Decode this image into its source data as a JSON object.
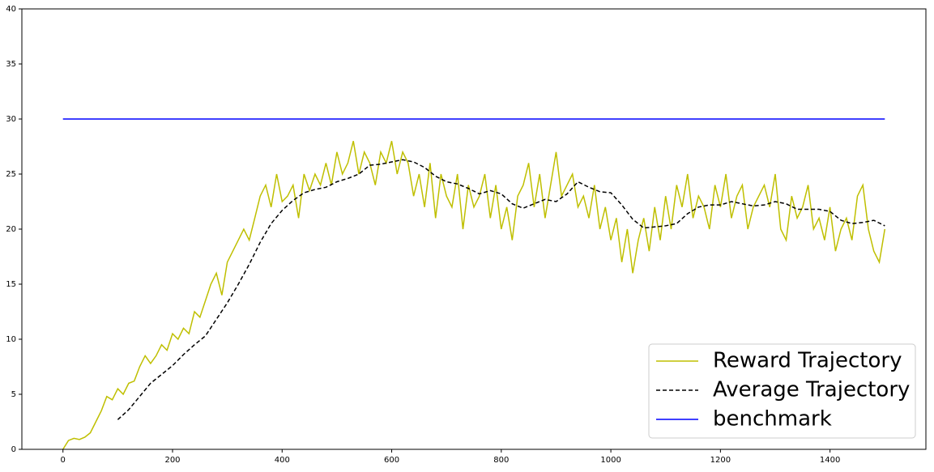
{
  "chart_data": {
    "type": "line",
    "xlim": [
      -75,
      1575
    ],
    "ylim": [
      0,
      40
    ],
    "xticks": [
      0,
      200,
      400,
      600,
      800,
      1000,
      1200,
      1400
    ],
    "yticks": [
      0,
      5,
      10,
      15,
      20,
      25,
      30,
      35,
      40
    ],
    "legend": "lower right",
    "series": [
      {
        "name": "Reward Trajectory",
        "color": "#bfbf00",
        "style": "solid",
        "x": [
          0,
          10,
          20,
          30,
          40,
          50,
          60,
          70,
          80,
          90,
          100,
          110,
          120,
          130,
          140,
          150,
          160,
          170,
          180,
          190,
          200,
          210,
          220,
          230,
          240,
          250,
          260,
          270,
          280,
          290,
          300,
          310,
          320,
          330,
          340,
          350,
          360,
          370,
          380,
          390,
          400,
          410,
          420,
          430,
          440,
          450,
          460,
          470,
          480,
          490,
          500,
          510,
          520,
          530,
          540,
          550,
          560,
          570,
          580,
          590,
          600,
          610,
          620,
          630,
          640,
          650,
          660,
          670,
          680,
          690,
          700,
          710,
          720,
          730,
          740,
          750,
          760,
          770,
          780,
          790,
          800,
          810,
          820,
          830,
          840,
          850,
          860,
          870,
          880,
          890,
          900,
          910,
          920,
          930,
          940,
          950,
          960,
          970,
          980,
          990,
          1000,
          1010,
          1020,
          1030,
          1040,
          1050,
          1060,
          1070,
          1080,
          1090,
          1100,
          1110,
          1120,
          1130,
          1140,
          1150,
          1160,
          1170,
          1180,
          1190,
          1200,
          1210,
          1220,
          1230,
          1240,
          1250,
          1260,
          1270,
          1280,
          1290,
          1300,
          1310,
          1320,
          1330,
          1340,
          1350,
          1360,
          1370,
          1380,
          1390,
          1400,
          1410,
          1420,
          1430,
          1440,
          1450,
          1460,
          1470,
          1480,
          1490,
          1500
        ],
        "values": [
          0,
          0.8,
          1,
          0.9,
          1.1,
          1.5,
          2.5,
          3.5,
          4.8,
          4.5,
          5.5,
          5,
          6,
          6.2,
          7.5,
          8.5,
          7.8,
          8.5,
          9.5,
          9,
          10.5,
          10,
          11,
          10.5,
          12.5,
          12,
          13.5,
          15,
          16,
          14,
          17,
          18,
          19,
          20,
          19,
          21,
          23,
          24,
          22,
          25,
          22.5,
          23,
          24,
          21,
          25,
          23.5,
          25,
          24,
          26,
          24,
          27,
          25,
          26,
          28,
          25,
          27,
          26,
          24,
          27,
          26,
          28,
          25,
          27,
          26,
          23,
          25,
          22,
          26,
          21,
          25,
          23,
          22,
          25,
          20,
          24,
          22,
          23,
          25,
          21,
          24,
          20,
          22,
          19,
          23,
          24,
          26,
          22,
          25,
          21,
          24,
          27,
          23,
          24,
          25,
          22,
          23,
          21,
          24,
          20,
          22,
          19,
          21,
          17,
          20,
          16,
          19,
          21,
          18,
          22,
          19,
          23,
          20,
          24,
          22,
          25,
          21,
          23,
          22,
          20,
          24,
          22,
          25,
          21,
          23,
          24,
          20,
          22,
          23,
          24,
          22,
          25,
          20,
          19,
          23,
          21,
          22,
          24,
          20,
          21,
          19,
          22,
          18,
          20,
          21,
          19,
          23,
          24,
          20,
          18,
          17,
          20
        ]
      },
      {
        "name": "Average Trajectory",
        "color": "#000000",
        "style": "dashed",
        "x": [
          100,
          120,
          140,
          160,
          180,
          200,
          220,
          240,
          260,
          280,
          300,
          320,
          340,
          360,
          380,
          400,
          420,
          440,
          460,
          480,
          500,
          520,
          540,
          560,
          580,
          600,
          620,
          640,
          660,
          680,
          700,
          720,
          740,
          760,
          780,
          800,
          820,
          840,
          860,
          880,
          900,
          920,
          940,
          960,
          980,
          1000,
          1020,
          1040,
          1060,
          1080,
          1100,
          1120,
          1140,
          1160,
          1180,
          1200,
          1220,
          1240,
          1260,
          1280,
          1300,
          1320,
          1340,
          1360,
          1380,
          1400,
          1420,
          1440,
          1460,
          1480,
          1500
        ],
        "values": [
          2.7,
          3.6,
          4.8,
          6,
          6.8,
          7.6,
          8.6,
          9.5,
          10.3,
          11.8,
          13.3,
          15,
          16.8,
          18.8,
          20.5,
          21.7,
          22.6,
          23.3,
          23.6,
          23.8,
          24.3,
          24.6,
          25,
          25.8,
          25.9,
          26.1,
          26.3,
          26.1,
          25.6,
          24.8,
          24.3,
          24.1,
          23.7,
          23.2,
          23.5,
          23.2,
          22.3,
          21.9,
          22.3,
          22.7,
          22.5,
          23.2,
          24.3,
          23.8,
          23.4,
          23.3,
          22.2,
          20.9,
          20.1,
          20.2,
          20.3,
          20.5,
          21.4,
          22,
          22.2,
          22.2,
          22.5,
          22.3,
          22.1,
          22.2,
          22.5,
          22.3,
          21.8,
          21.8,
          21.8,
          21.6,
          20.8,
          20.5,
          20.6,
          20.8,
          20.3
        ]
      },
      {
        "name": "benchmark",
        "color": "#0000ff",
        "style": "solid",
        "x": [
          0,
          1500
        ],
        "values": [
          30,
          30
        ]
      }
    ]
  }
}
